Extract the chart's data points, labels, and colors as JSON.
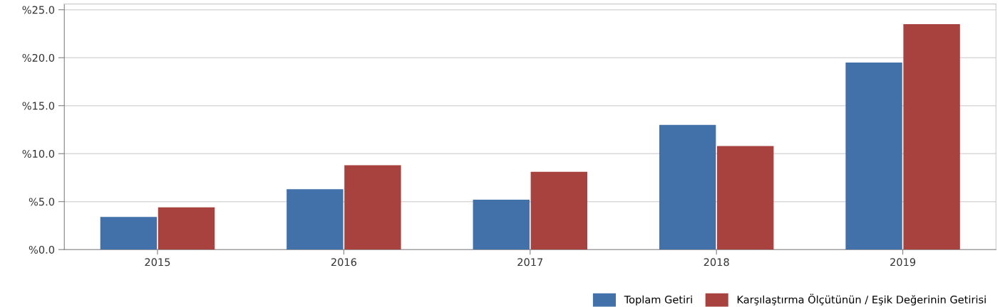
{
  "chart_data": {
    "type": "bar",
    "categories": [
      "2015",
      "2016",
      "2017",
      "2018",
      "2019"
    ],
    "series": [
      {
        "name": "Toplam Getiri",
        "color": "#4270a8",
        "values": [
          3.4,
          6.3,
          5.2,
          13.0,
          19.5
        ]
      },
      {
        "name": "Karşılaştırma Ölçütünün / Eşik Değerinin Getirisi",
        "color": "#a8423f",
        "values": [
          4.4,
          8.8,
          8.1,
          10.8,
          23.5
        ]
      }
    ],
    "ylim": [
      0,
      25.6
    ],
    "yticks": [
      {
        "value": 0,
        "label": "%0.0"
      },
      {
        "value": 5,
        "label": "%5.0"
      },
      {
        "value": 10,
        "label": "%10.0"
      },
      {
        "value": 15,
        "label": "%15.0"
      },
      {
        "value": 20,
        "label": "%20.0"
      },
      {
        "value": 25,
        "label": "%25.0"
      }
    ],
    "grid": "y",
    "legend": "bottom right"
  }
}
